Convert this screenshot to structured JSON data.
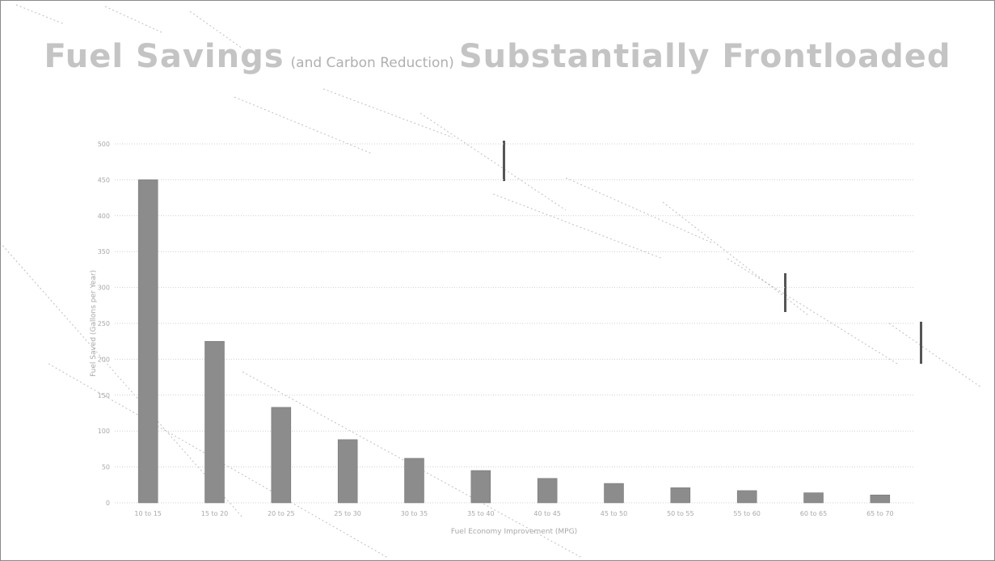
{
  "title": {
    "part1": "Fuel Savings",
    "part2": "(and Carbon Reduction)",
    "part3": "Substantially Frontloaded"
  },
  "chart_data": {
    "type": "bar",
    "categories": [
      "10 to 15",
      "15 to 20",
      "20 to 25",
      "25 to 30",
      "30 to 35",
      "35 to 40",
      "40 to 45",
      "45 to 50",
      "50 to 55",
      "55 to 60",
      "60 to 65",
      "65 to 70"
    ],
    "values": [
      450,
      225,
      133,
      88,
      62,
      45,
      34,
      27,
      21,
      17,
      14,
      11
    ],
    "xlabel": "Fuel Economy Improvement (MPG)",
    "ylabel": "Fuel Saved (Gallons per Year)",
    "ylim": [
      0,
      500
    ],
    "yticks": [
      0,
      50,
      100,
      150,
      200,
      250,
      300,
      350,
      400,
      450,
      500
    ],
    "grid": true,
    "bar_color": "#8c8c8c"
  }
}
